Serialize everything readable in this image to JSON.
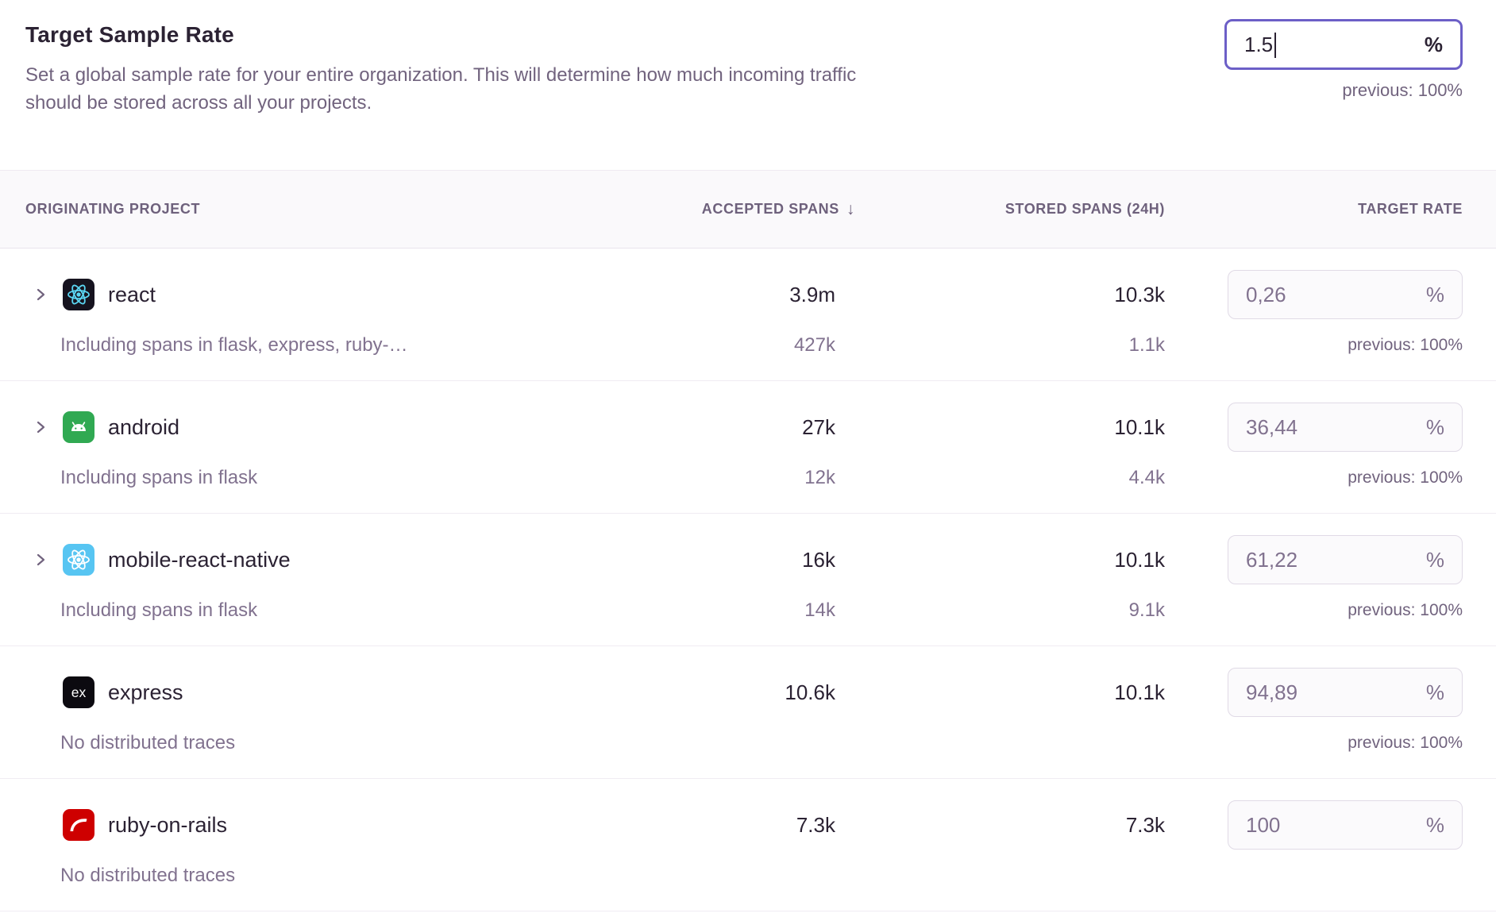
{
  "header": {
    "title": "Target Sample Rate",
    "description_line1": "Set a global sample rate for your entire organization. This will determine how much incoming traffic",
    "description_line2": "should be stored across all your projects.",
    "rate_input": {
      "value": "1.5",
      "suffix": "%"
    },
    "previous": "previous: 100%"
  },
  "table": {
    "columns": {
      "project": "ORIGINATING PROJECT",
      "accepted": "ACCEPTED SPANS",
      "sort_icon": "↓",
      "stored": "STORED SPANS (24H)",
      "target": "TARGET RATE"
    },
    "rows": [
      {
        "name": "react",
        "icon": "react-icon",
        "expandable": true,
        "accepted": "3.9m",
        "stored": "10.3k",
        "rate": "0,26",
        "suffix": "%",
        "previous": "previous: 100%",
        "sub_label": "Including spans in flask, express, ruby-…",
        "sub_accepted": "427k",
        "sub_stored": "1.1k"
      },
      {
        "name": "android",
        "icon": "android-icon",
        "expandable": true,
        "accepted": "27k",
        "stored": "10.1k",
        "rate": "36,44",
        "suffix": "%",
        "previous": "previous: 100%",
        "sub_label": "Including spans in flask",
        "sub_accepted": "12k",
        "sub_stored": "4.4k"
      },
      {
        "name": "mobile-react-native",
        "icon": "react-native-icon",
        "expandable": true,
        "accepted": "16k",
        "stored": "10.1k",
        "rate": "61,22",
        "suffix": "%",
        "previous": "previous: 100%",
        "sub_label": "Including spans in flask",
        "sub_accepted": "14k",
        "sub_stored": "9.1k"
      },
      {
        "name": "express",
        "icon": "express-icon",
        "expandable": false,
        "accepted": "10.6k",
        "stored": "10.1k",
        "rate": "94,89",
        "suffix": "%",
        "previous": "previous: 100%",
        "sub_label": "No distributed traces",
        "sub_accepted": "",
        "sub_stored": ""
      },
      {
        "name": "ruby-on-rails",
        "icon": "rails-icon",
        "expandable": false,
        "accepted": "7.3k",
        "stored": "7.3k",
        "rate": "100",
        "suffix": "%",
        "previous": "",
        "sub_label": "No distributed traces",
        "sub_accepted": "",
        "sub_stored": ""
      }
    ]
  }
}
